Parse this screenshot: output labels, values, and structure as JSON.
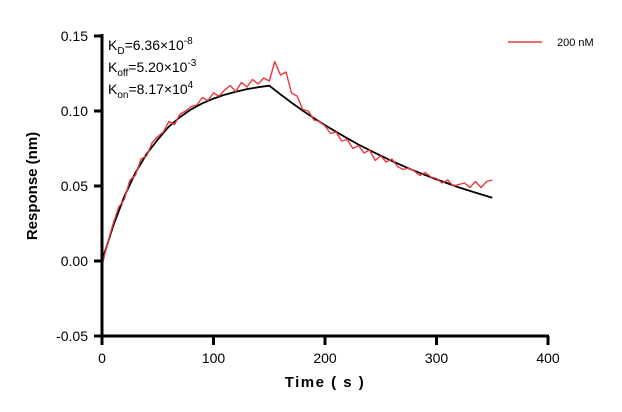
{
  "chart_data": {
    "type": "line",
    "xlabel": "Time ( s )",
    "ylabel": "Response (nm)",
    "xlim": [
      0,
      400
    ],
    "ylim": [
      -0.05,
      0.15
    ],
    "x_ticks": [
      "0",
      "100",
      "200",
      "300",
      "400"
    ],
    "y_ticks": [
      "0.15",
      "0.10",
      "0.05",
      "0.00",
      "-0.05"
    ],
    "grid": false,
    "legend_position": "top-right",
    "annotations": [
      {
        "base": "K",
        "sub": "D",
        "text": "=6.36×10",
        "sup": "-8"
      },
      {
        "base": "K",
        "sub": "off",
        "text": "=5.20×10",
        "sup": "-3"
      },
      {
        "base": "K",
        "sub": "on",
        "text": "=8.17×10",
        "sup": "4"
      }
    ],
    "series": [
      {
        "name": "200 nM",
        "color": "#e8383d",
        "x": [
          0,
          5,
          10,
          15,
          20,
          25,
          30,
          35,
          40,
          45,
          50,
          55,
          60,
          65,
          70,
          75,
          80,
          85,
          90,
          95,
          100,
          105,
          110,
          115,
          120,
          125,
          130,
          135,
          140,
          145,
          150,
          155,
          160,
          165,
          170,
          175,
          180,
          185,
          190,
          195,
          200,
          205,
          210,
          215,
          220,
          225,
          230,
          235,
          240,
          245,
          250,
          255,
          260,
          265,
          270,
          275,
          280,
          285,
          290,
          295,
          300,
          305,
          310,
          315,
          320,
          325,
          330,
          335,
          340,
          345,
          350
        ],
        "y": [
          -0.003,
          0.012,
          0.025,
          0.036,
          0.041,
          0.054,
          0.057,
          0.068,
          0.07,
          0.079,
          0.083,
          0.086,
          0.093,
          0.091,
          0.098,
          0.1,
          0.103,
          0.104,
          0.109,
          0.107,
          0.112,
          0.11,
          0.114,
          0.117,
          0.113,
          0.119,
          0.116,
          0.121,
          0.118,
          0.122,
          0.12,
          0.133,
          0.124,
          0.126,
          0.112,
          0.11,
          0.101,
          0.1,
          0.094,
          0.093,
          0.09,
          0.085,
          0.086,
          0.08,
          0.081,
          0.075,
          0.077,
          0.072,
          0.074,
          0.067,
          0.07,
          0.066,
          0.068,
          0.063,
          0.061,
          0.062,
          0.06,
          0.057,
          0.059,
          0.056,
          0.055,
          0.052,
          0.054,
          0.05,
          0.051,
          0.052,
          0.049,
          0.053,
          0.049,
          0.053,
          0.054
        ]
      },
      {
        "color": "#000000",
        "x": [
          0,
          10,
          20,
          30,
          40,
          50,
          60,
          70,
          80,
          90,
          100,
          110,
          120,
          130,
          140,
          150,
          160,
          170,
          180,
          190,
          200,
          210,
          220,
          230,
          240,
          250,
          260,
          270,
          280,
          290,
          300,
          310,
          320,
          330,
          340,
          350
        ],
        "y": [
          0,
          0.0235,
          0.043,
          0.0588,
          0.0714,
          0.081,
          0.0896,
          0.096,
          0.1011,
          0.1051,
          0.1083,
          0.1109,
          0.1129,
          0.1146,
          0.1159,
          0.1169,
          0.1111,
          0.1056,
          0.1003,
          0.0953,
          0.0906,
          0.0861,
          0.0818,
          0.0777,
          0.0739,
          0.0702,
          0.0667,
          0.0634,
          0.0602,
          0.0573,
          0.0544,
          0.0517,
          0.0491,
          0.0467,
          0.0444,
          0.0422
        ]
      }
    ]
  }
}
